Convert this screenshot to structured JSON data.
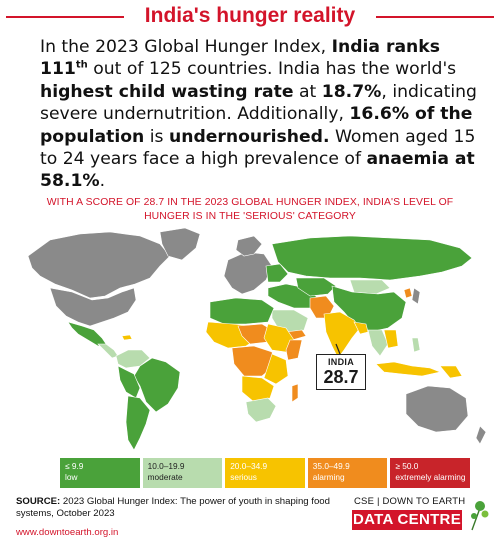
{
  "title": "India's hunger reality",
  "intro": {
    "t1": "In the 2023 Global Hunger Index, ",
    "b1": "India ranks 111",
    "sup1": "th",
    "t2": " out of 125 countries. India has the world's ",
    "b2": "highest child wasting rate",
    "t3": " at ",
    "b3": "18.7%",
    "t4": ", indicating severe undernutrition. Additionally, ",
    "b4": "16.6% of the population",
    "t5": " is ",
    "b5": "undernourished.",
    "t6": " Women aged 15 to 24 years face a high prevalence of ",
    "b6": "anaemia at 58.1%",
    "t7": "."
  },
  "subheading": "WITH A SCORE OF 28.7 IN THE 2023 GLOBAL HUNGER INDEX, INDIA'S LEVEL OF HUNGER IS IN THE 'SERIOUS' CATEGORY",
  "india_callout": {
    "name": "INDIA",
    "score": "28.7"
  },
  "colors": {
    "accent": "#d3142a",
    "low": "#4aa23a",
    "moderate": "#b8dcae",
    "serious": "#f7c300",
    "alarming": "#f08c1e",
    "extremely_alarming": "#a0112e",
    "no_data": "#8a8a8a"
  },
  "legend": [
    {
      "range": "≤ 9.9",
      "label": "low",
      "color": "#4aa23a",
      "text_color": "#ffffff"
    },
    {
      "range": "10.0–19.9",
      "label": "moderate",
      "color": "#b8dcae",
      "text_color": "#222222"
    },
    {
      "range": "20.0–34.9",
      "label": "serious",
      "color": "#f7c300",
      "text_color": "#ffffff"
    },
    {
      "range": "35.0–49.9",
      "label": "alarming",
      "color": "#f08c1e",
      "text_color": "#ffffff"
    },
    {
      "range": "≥ 50.0",
      "label": "extremely alarming",
      "color": "#c8242a",
      "text_color": "#ffffff"
    }
  ],
  "source": {
    "label": "SOURCE:",
    "text": " 2023 Global Hunger Index: The power of youth in shaping food systems, October 2023"
  },
  "url": "www.downtoearth.org.in",
  "brand": {
    "top": "CSE | DOWN TO EARTH",
    "box": "DATA CENTRE"
  }
}
